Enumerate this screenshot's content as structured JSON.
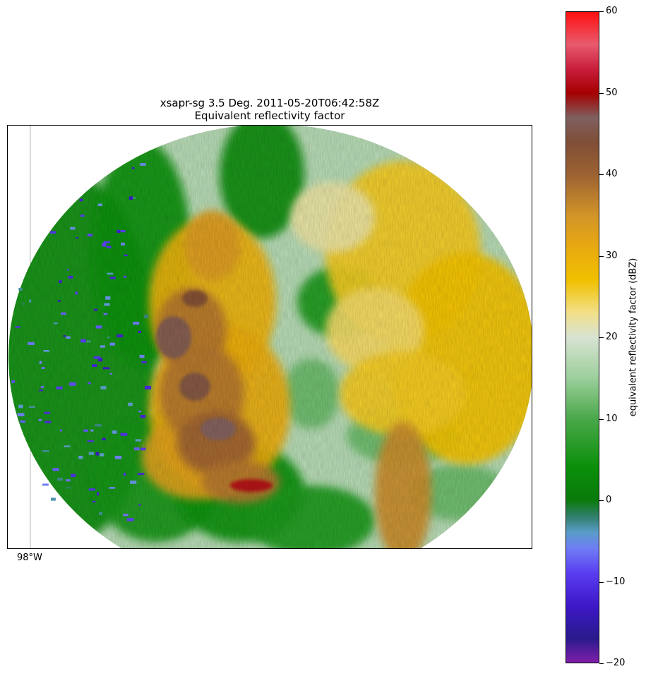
{
  "chart_data": {
    "type": "heatmap",
    "title_line1": "xsapr-sg 3.5 Deg. 2011-05-20T06:42:58Z",
    "title_line2": "Equivalent reflectivity factor",
    "x_tick_labels": [
      "98°W"
    ],
    "colorbar": {
      "label": "equivalent reflectivity factor (dBZ)",
      "range": [
        -20,
        60
      ],
      "ticks": [
        60,
        50,
        40,
        30,
        20,
        10,
        0,
        -10,
        -20
      ],
      "tick_labels": [
        "60",
        "50",
        "40",
        "30",
        "20",
        "10",
        "0",
        "−10",
        "−20"
      ],
      "color_stops": [
        {
          "value": -20,
          "color": "#7f1fa8"
        },
        {
          "value": -17,
          "color": "#2a1a8c"
        },
        {
          "value": -13,
          "color": "#3d18c8"
        },
        {
          "value": -9,
          "color": "#5a3df0"
        },
        {
          "value": -6,
          "color": "#6f7cf5"
        },
        {
          "value": -4,
          "color": "#5a9cc8"
        },
        {
          "value": -2,
          "color": "#2f7f6a"
        },
        {
          "value": 0,
          "color": "#0a7a0a"
        },
        {
          "value": 4,
          "color": "#0a8f0a"
        },
        {
          "value": 10,
          "color": "#4aa84a"
        },
        {
          "value": 15,
          "color": "#9ccf9c"
        },
        {
          "value": 20,
          "color": "#d8e3d2"
        },
        {
          "value": 23,
          "color": "#f2e08a"
        },
        {
          "value": 27,
          "color": "#f0c000"
        },
        {
          "value": 31,
          "color": "#e8aa10"
        },
        {
          "value": 35,
          "color": "#d29428"
        },
        {
          "value": 40,
          "color": "#9c6232"
        },
        {
          "value": 44,
          "color": "#7f4e36"
        },
        {
          "value": 47,
          "color": "#7f6060"
        },
        {
          "value": 50,
          "color": "#a50000"
        },
        {
          "value": 53,
          "color": "#c81e3c"
        },
        {
          "value": 56,
          "color": "#e85a6e"
        },
        {
          "value": 60,
          "color": "#ff1010"
        }
      ]
    }
  }
}
